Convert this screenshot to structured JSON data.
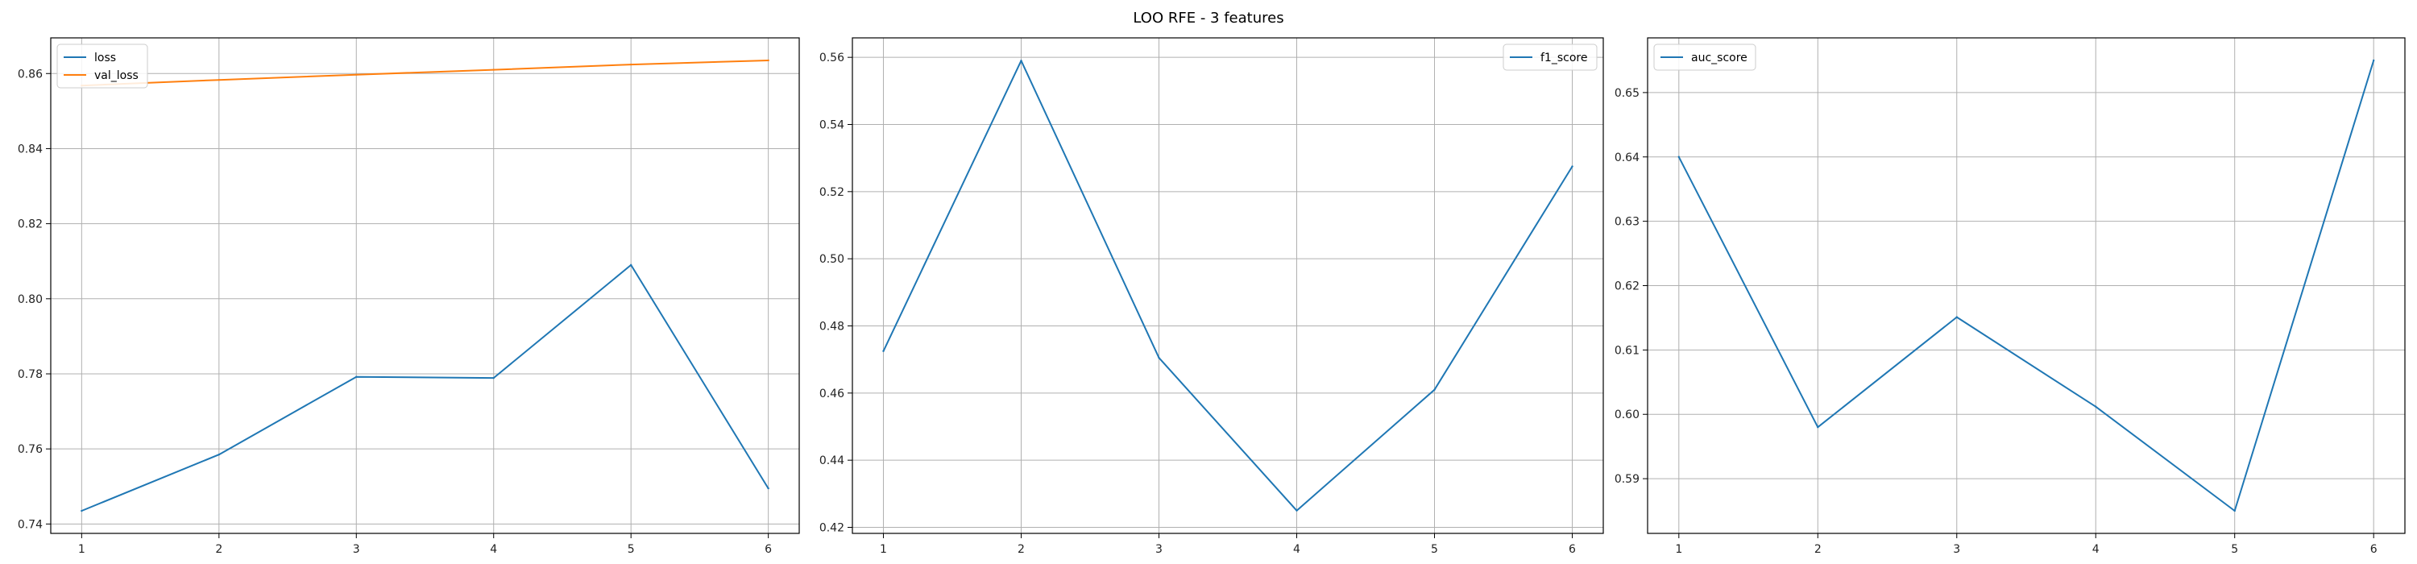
{
  "figure": {
    "title": "LOO RFE - 3 features"
  },
  "colors": {
    "blue": "#1f77b4",
    "orange": "#ff7f0e",
    "grid": "#b0b0b0",
    "axis": "#000000"
  },
  "chart_data": [
    {
      "type": "line",
      "x": [
        1,
        2,
        3,
        4,
        5,
        6
      ],
      "series": [
        {
          "name": "loss",
          "values": [
            0.7435,
            0.7585,
            0.7792,
            0.7789,
            0.809,
            0.7495
          ],
          "color": "#1f77b4"
        },
        {
          "name": "val_loss",
          "values": [
            0.8568,
            0.8583,
            0.8597,
            0.861,
            0.8624,
            0.8635
          ],
          "color": "#ff7f0e"
        }
      ],
      "xticks": [
        1,
        2,
        3,
        4,
        5,
        6
      ],
      "yticks": [
        0.74,
        0.76,
        0.78,
        0.8,
        0.82,
        0.84,
        0.86
      ],
      "ylim": [
        0.7375,
        0.8695
      ],
      "xlim": [
        0.775,
        6.225
      ],
      "grid": true,
      "legend": "top-left"
    },
    {
      "type": "line",
      "x": [
        1,
        2,
        3,
        4,
        5,
        6
      ],
      "series": [
        {
          "name": "f1_score",
          "values": [
            0.4725,
            0.559,
            0.4705,
            0.425,
            0.461,
            0.5275
          ],
          "color": "#1f77b4"
        }
      ],
      "xticks": [
        1,
        2,
        3,
        4,
        5,
        6
      ],
      "yticks": [
        0.42,
        0.44,
        0.46,
        0.48,
        0.5,
        0.52,
        0.54,
        0.56
      ],
      "ylim": [
        0.4182,
        0.5658
      ],
      "xlim": [
        0.775,
        6.225
      ],
      "grid": true,
      "legend": "top-right"
    },
    {
      "type": "line",
      "x": [
        1,
        2,
        3,
        4,
        5,
        6
      ],
      "series": [
        {
          "name": "auc_score",
          "values": [
            0.64,
            0.598,
            0.6151,
            0.6012,
            0.585,
            0.655
          ],
          "color": "#1f77b4"
        }
      ],
      "xticks": [
        1,
        2,
        3,
        4,
        5,
        6
      ],
      "yticks": [
        0.59,
        0.6,
        0.61,
        0.62,
        0.63,
        0.64,
        0.65
      ],
      "ylim": [
        0.5815,
        0.6585
      ],
      "xlim": [
        0.775,
        6.225
      ],
      "grid": true,
      "legend": "top-left"
    }
  ]
}
